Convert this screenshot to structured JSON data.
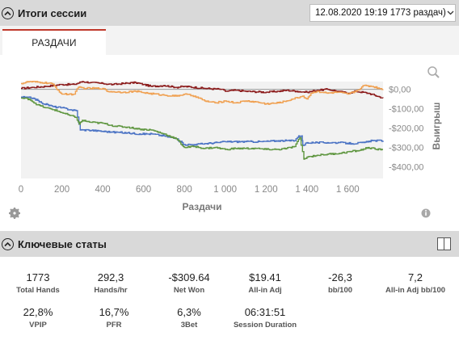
{
  "session": {
    "title": "Итоги сессии",
    "selected": "12.08.2020 19:19 1773 раздач)"
  },
  "tabs": [
    {
      "label": "РАЗДАЧИ",
      "active": true
    }
  ],
  "chart_data": {
    "type": "line",
    "xlabel": "Раздачи",
    "ylabel": "Выигрыш",
    "xlim": [
      0,
      1773
    ],
    "ylim": [
      -460,
      40
    ],
    "xticks": [
      "0",
      "200",
      "400",
      "600",
      "800",
      "1 000",
      "1 200",
      "1 400",
      "1 600"
    ],
    "xtick_values": [
      0,
      200,
      400,
      600,
      800,
      1000,
      1200,
      1400,
      1600
    ],
    "yticks": [
      "$0,00",
      "-$100,00",
      "-$200,00",
      "-$300,00",
      "-$400,00"
    ],
    "ytick_values": [
      0,
      -100,
      -200,
      -300,
      -400
    ],
    "series": [
      {
        "color": "#8b1a1a",
        "points": [
          [
            0,
            5
          ],
          [
            60,
            10
          ],
          [
            120,
            15
          ],
          [
            200,
            25
          ],
          [
            260,
            25
          ],
          [
            300,
            40
          ],
          [
            340,
            35
          ],
          [
            400,
            30
          ],
          [
            450,
            25
          ],
          [
            500,
            30
          ],
          [
            560,
            35
          ],
          [
            600,
            25
          ],
          [
            640,
            15
          ],
          [
            700,
            20
          ],
          [
            760,
            10
          ],
          [
            800,
            15
          ],
          [
            900,
            5
          ],
          [
            980,
            0
          ],
          [
            1000,
            -10
          ],
          [
            1050,
            -5
          ],
          [
            1100,
            -10
          ],
          [
            1200,
            -15
          ],
          [
            1260,
            -10
          ],
          [
            1300,
            -5
          ],
          [
            1350,
            -10
          ],
          [
            1400,
            -15
          ],
          [
            1450,
            -5
          ],
          [
            1500,
            0
          ],
          [
            1550,
            -10
          ],
          [
            1600,
            -20
          ],
          [
            1640,
            -10
          ],
          [
            1700,
            -20
          ],
          [
            1773,
            -45
          ]
        ]
      },
      {
        "color": "#f0a050",
        "points": [
          [
            0,
            30
          ],
          [
            40,
            40
          ],
          [
            100,
            35
          ],
          [
            150,
            30
          ],
          [
            200,
            -25
          ],
          [
            260,
            -25
          ],
          [
            280,
            10
          ],
          [
            320,
            5
          ],
          [
            400,
            5
          ],
          [
            420,
            -10
          ],
          [
            500,
            -15
          ],
          [
            560,
            -10
          ],
          [
            620,
            -20
          ],
          [
            700,
            -30
          ],
          [
            760,
            -35
          ],
          [
            800,
            -25
          ],
          [
            850,
            -35
          ],
          [
            900,
            -60
          ],
          [
            950,
            -70
          ],
          [
            1000,
            -60
          ],
          [
            1050,
            -70
          ],
          [
            1100,
            -60
          ],
          [
            1150,
            -65
          ],
          [
            1200,
            -75
          ],
          [
            1260,
            -70
          ],
          [
            1300,
            -60
          ],
          [
            1330,
            -50
          ],
          [
            1380,
            -35
          ],
          [
            1400,
            -50
          ],
          [
            1420,
            -20
          ],
          [
            1450,
            -10
          ],
          [
            1500,
            -20
          ],
          [
            1550,
            -15
          ],
          [
            1600,
            -25
          ],
          [
            1640,
            -10
          ],
          [
            1680,
            20
          ],
          [
            1720,
            15
          ],
          [
            1773,
            0
          ]
        ]
      },
      {
        "color": "#4a72c4",
        "points": [
          [
            0,
            -40
          ],
          [
            60,
            -45
          ],
          [
            100,
            -70
          ],
          [
            160,
            -90
          ],
          [
            200,
            -95
          ],
          [
            240,
            -105
          ],
          [
            270,
            -110
          ],
          [
            290,
            -210
          ],
          [
            330,
            -210
          ],
          [
            380,
            -215
          ],
          [
            440,
            -220
          ],
          [
            520,
            -225
          ],
          [
            580,
            -230
          ],
          [
            640,
            -230
          ],
          [
            700,
            -240
          ],
          [
            760,
            -255
          ],
          [
            800,
            -285
          ],
          [
            850,
            -285
          ],
          [
            900,
            -280
          ],
          [
            960,
            -275
          ],
          [
            1000,
            -270
          ],
          [
            1100,
            -270
          ],
          [
            1180,
            -270
          ],
          [
            1260,
            -265
          ],
          [
            1300,
            -265
          ],
          [
            1340,
            -265
          ],
          [
            1360,
            -240
          ],
          [
            1375,
            -240
          ],
          [
            1380,
            -290
          ],
          [
            1400,
            -275
          ],
          [
            1450,
            -275
          ],
          [
            1500,
            -275
          ],
          [
            1560,
            -275
          ],
          [
            1620,
            -280
          ],
          [
            1680,
            -275
          ],
          [
            1720,
            -265
          ],
          [
            1773,
            -265
          ]
        ]
      },
      {
        "color": "#5f9640",
        "points": [
          [
            0,
            -45
          ],
          [
            40,
            -50
          ],
          [
            80,
            -80
          ],
          [
            120,
            -95
          ],
          [
            160,
            -105
          ],
          [
            200,
            -120
          ],
          [
            240,
            -135
          ],
          [
            270,
            -145
          ],
          [
            285,
            -180
          ],
          [
            300,
            -160
          ],
          [
            340,
            -170
          ],
          [
            400,
            -175
          ],
          [
            460,
            -190
          ],
          [
            520,
            -195
          ],
          [
            580,
            -205
          ],
          [
            640,
            -210
          ],
          [
            700,
            -230
          ],
          [
            760,
            -255
          ],
          [
            800,
            -300
          ],
          [
            850,
            -295
          ],
          [
            900,
            -305
          ],
          [
            950,
            -300
          ],
          [
            1000,
            -310
          ],
          [
            1050,
            -305
          ],
          [
            1100,
            -305
          ],
          [
            1150,
            -305
          ],
          [
            1200,
            -310
          ],
          [
            1260,
            -310
          ],
          [
            1300,
            -305
          ],
          [
            1340,
            -295
          ],
          [
            1365,
            -250
          ],
          [
            1385,
            -360
          ],
          [
            1400,
            -350
          ],
          [
            1450,
            -340
          ],
          [
            1500,
            -335
          ],
          [
            1560,
            -330
          ],
          [
            1620,
            -320
          ],
          [
            1660,
            -315
          ],
          [
            1700,
            -300
          ],
          [
            1740,
            -310
          ],
          [
            1773,
            -310
          ]
        ]
      }
    ]
  },
  "stats": {
    "title": "Ключевые статы",
    "items": [
      {
        "value": "1773",
        "label": "Total Hands"
      },
      {
        "value": "292,3",
        "label": "Hands/hr"
      },
      {
        "value": "-$309.64",
        "label": "Net Won"
      },
      {
        "value": "$19.41",
        "label": "All-in Adj"
      },
      {
        "value": "-26,3",
        "label": "bb/100"
      },
      {
        "value": "7,2",
        "label": "All-in Adj bb/100"
      },
      {
        "value": "22,8%",
        "label": "VPIP"
      },
      {
        "value": "16,7%",
        "label": "PFR"
      },
      {
        "value": "6,3%",
        "label": "3Bet"
      },
      {
        "value": "06:31:51",
        "label": "Session Duration"
      }
    ]
  },
  "icons": {
    "collapse": "chevron-up-icon",
    "dropdown": "chevron-down-icon",
    "zoom": "magnifier-icon",
    "settings": "gear-icon",
    "info": "info-icon",
    "layout": "columns-icon"
  }
}
